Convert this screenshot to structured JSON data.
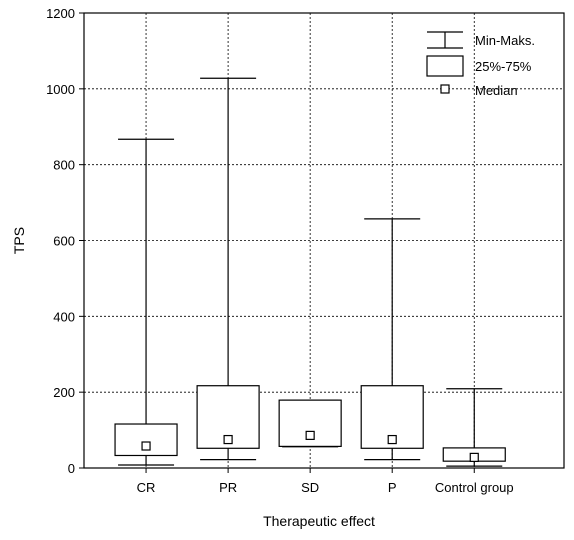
{
  "chart_data": {
    "type": "boxplot",
    "categories": [
      "CR",
      "PR",
      "SD",
      "P",
      "Control group"
    ],
    "series": [
      {
        "category": "CR",
        "min": 8,
        "q1": 33,
        "median": 58,
        "q3": 116,
        "max": 867
      },
      {
        "category": "PR",
        "min": 22,
        "q1": 52,
        "median": 75,
        "q3": 217,
        "max": 1028
      },
      {
        "category": "SD",
        "min": 56,
        "q1": 57,
        "median": 86,
        "q3": 179,
        "max": 179
      },
      {
        "category": "P",
        "min": 22,
        "q1": 52,
        "median": 75,
        "q3": 217,
        "max": 657
      },
      {
        "category": "Control group",
        "min": 5,
        "q1": 18,
        "median": 28,
        "q3": 53,
        "max": 209
      }
    ],
    "xlabel": "Therapeutic effect",
    "ylabel": "TPS",
    "ylim": [
      0,
      1200
    ],
    "yticks": [
      "0",
      "200",
      "400",
      "600",
      "800",
      "1000",
      "1200"
    ],
    "grid": true,
    "legend": {
      "placement": "top-right",
      "entries": [
        "Min-Maks.",
        "25%-75%",
        "Median"
      ]
    },
    "colors": {
      "stroke": "#000000",
      "grid": "#000000",
      "fill": "#ffffff"
    }
  }
}
